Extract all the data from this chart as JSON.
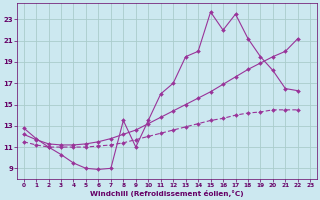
{
  "bg_color": "#cce8f0",
  "grid_color": "#aacccc",
  "line_color": "#993399",
  "xlabel": "Windchill (Refroidissement éolien,°C)",
  "xlabel_color": "#660066",
  "tick_color": "#660066",
  "xlim": [
    -0.5,
    23.5
  ],
  "ylim": [
    8.0,
    24.5
  ],
  "yticks": [
    9,
    11,
    13,
    15,
    17,
    19,
    21,
    23
  ],
  "xticks": [
    0,
    1,
    2,
    3,
    4,
    5,
    6,
    7,
    8,
    9,
    10,
    11,
    12,
    13,
    14,
    15,
    16,
    17,
    18,
    19,
    20,
    21,
    22,
    23
  ],
  "line1_x": [
    0,
    1,
    2,
    3,
    4,
    5,
    6,
    7,
    8,
    9,
    10,
    11,
    12,
    13,
    14,
    15,
    16,
    17,
    18,
    19,
    20,
    21,
    22
  ],
  "line1_y": [
    12.8,
    11.8,
    11.0,
    10.3,
    9.5,
    9.0,
    8.9,
    9.0,
    13.5,
    11.0,
    13.5,
    16.0,
    17.0,
    19.5,
    20.0,
    23.7,
    22.0,
    23.5,
    21.2,
    19.5,
    18.2,
    16.5,
    16.3
  ],
  "line2_x": [
    0,
    1,
    2,
    3,
    4,
    5,
    6,
    7,
    8,
    9,
    10,
    11,
    12,
    13,
    14,
    15,
    16,
    17,
    18,
    19,
    20,
    21,
    22
  ],
  "line2_y": [
    12.2,
    11.7,
    11.3,
    11.2,
    11.2,
    11.3,
    11.5,
    11.8,
    12.2,
    12.6,
    13.2,
    13.8,
    14.4,
    15.0,
    15.6,
    16.2,
    16.9,
    17.6,
    18.3,
    18.9,
    19.5,
    20.0,
    21.2
  ],
  "line3_x": [
    0,
    1,
    2,
    3,
    4,
    5,
    6,
    7,
    8,
    9,
    10,
    11,
    12,
    13,
    14,
    15,
    16,
    17,
    18,
    19,
    20,
    21,
    22
  ],
  "line3_y": [
    11.5,
    11.2,
    11.0,
    11.0,
    11.0,
    11.0,
    11.1,
    11.2,
    11.4,
    11.7,
    12.0,
    12.3,
    12.6,
    12.9,
    13.2,
    13.5,
    13.7,
    14.0,
    14.2,
    14.3,
    14.5,
    14.5,
    14.5
  ]
}
